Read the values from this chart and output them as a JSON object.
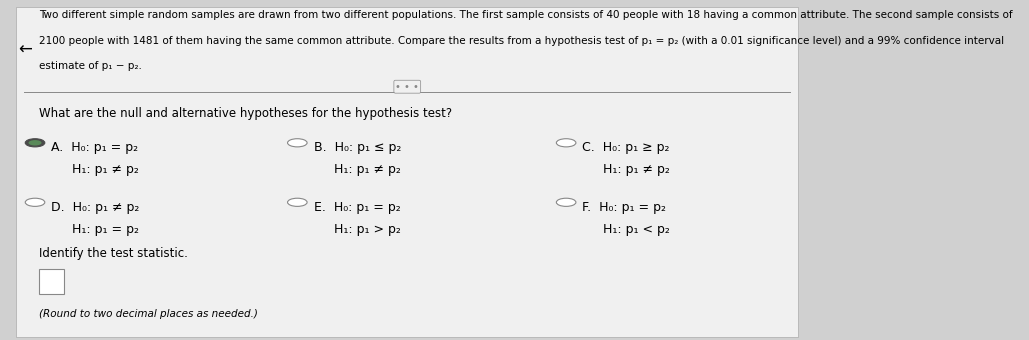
{
  "bg_color": "#d0d0d0",
  "panel_color": "#f0f0f0",
  "header_text": "Two different simple random samples are drawn from two different populations. The first sample consists of 40 people with 18 having a common attribute. The second sample consists of\n2100 people with 1481 of them having the same common attribute. Compare the results from a hypothesis test of p₁ = p₂ (with a 0.01 significance level) and a 99% confidence interval\nestimate of p₁ − p₂.",
  "question_text": "What are the null and alternative hypotheses for the hypothesis test?",
  "options": [
    {
      "label": "A.",
      "h0": "H₀: p₁ = p₂",
      "h1": "H₁: p₁ ≠ p₂",
      "selected": true
    },
    {
      "label": "B.",
      "h0": "H₀: p₁ ≤ p₂",
      "h1": "H₁: p₁ ≠ p₂",
      "selected": false
    },
    {
      "label": "C.",
      "h0": "H₀: p₁ ≥ p₂",
      "h1": "H₁: p₁ ≠ p₂",
      "selected": false
    },
    {
      "label": "D.",
      "h0": "H₀: p₁ ≠ p₂",
      "h1": "H₁: p₁ = p₂",
      "selected": false
    },
    {
      "label": "E.",
      "h0": "H₀: p₁ = p₂",
      "h1": "H₁: p₁ > p₂",
      "selected": false
    },
    {
      "label": "F.",
      "h0": "H₀: p₁ = p₂",
      "h1": "H₁: p₁ < p₂",
      "selected": false
    }
  ],
  "identify_text": "Identify the test statistic.",
  "round_note": "(Round to two decimal places as needed.)",
  "dots_text": "• • •",
  "arrow_symbol": "←",
  "font_size_header": 7.5,
  "font_size_question": 8.5,
  "font_size_options": 9.0,
  "font_size_identify": 8.5,
  "font_size_round": 7.5
}
